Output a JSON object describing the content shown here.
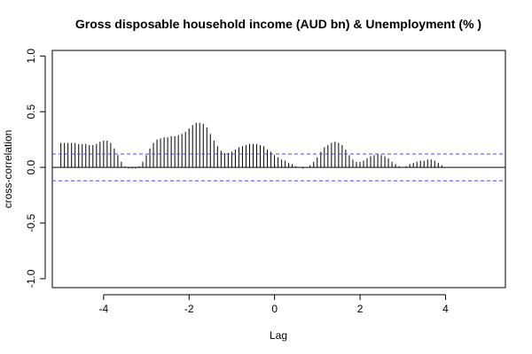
{
  "chart_data": {
    "type": "bar",
    "title": "Gross disposable household income (AUD bn) & Unemployment (% )",
    "xlabel": "Lag",
    "ylabel": "cross-correlation",
    "xlim": [
      -5.2,
      5.4
    ],
    "ylim": [
      -1.08,
      1.05
    ],
    "x_ticks": [
      "-4",
      "-2",
      "0",
      "2",
      "4"
    ],
    "y_ticks": [
      "-1.0",
      "-0.5",
      "0.0",
      "0.5",
      "1.0"
    ],
    "confidence_bound": 0.12,
    "grid": false,
    "colors": {
      "bars": "#000000",
      "confidence_lines": "#4a4ae0",
      "zero_line": "#000000",
      "frame": "#000000"
    },
    "lag_step": 0.0833,
    "lag_start": -5,
    "values": [
      0.22,
      0.22,
      0.22,
      0.22,
      0.22,
      0.21,
      0.21,
      0.21,
      0.2,
      0.2,
      0.21,
      0.23,
      0.24,
      0.24,
      0.22,
      0.17,
      0.11,
      0.05,
      0.01,
      -0.01,
      -0.01,
      -0.01,
      0.01,
      0.05,
      0.11,
      0.17,
      0.22,
      0.25,
      0.26,
      0.27,
      0.27,
      0.28,
      0.28,
      0.29,
      0.3,
      0.32,
      0.35,
      0.38,
      0.4,
      0.4,
      0.39,
      0.36,
      0.3,
      0.24,
      0.19,
      0.15,
      0.13,
      0.13,
      0.14,
      0.16,
      0.18,
      0.19,
      0.2,
      0.21,
      0.21,
      0.21,
      0.2,
      0.19,
      0.16,
      0.14,
      0.11,
      0.09,
      0.07,
      0.06,
      0.04,
      0.03,
      0.01,
      0.0,
      -0.01,
      0.0,
      0.02,
      0.05,
      0.09,
      0.14,
      0.18,
      0.2,
      0.22,
      0.23,
      0.22,
      0.2,
      0.16,
      0.11,
      0.07,
      0.05,
      0.05,
      0.06,
      0.08,
      0.1,
      0.11,
      0.12,
      0.11,
      0.1,
      0.08,
      0.05,
      0.03,
      0.01,
      0.0,
      0.01,
      0.03,
      0.04,
      0.05,
      0.06,
      0.06,
      0.07,
      0.07,
      0.06,
      0.04,
      0.02
    ]
  }
}
